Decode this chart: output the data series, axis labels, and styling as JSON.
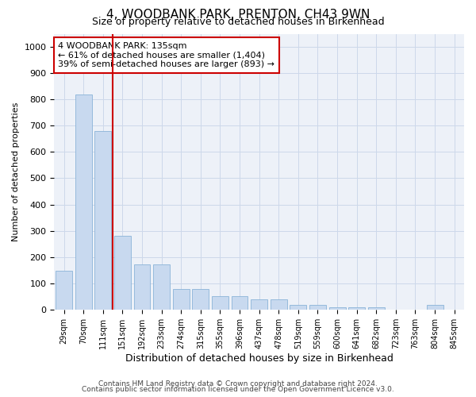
{
  "title": "4, WOODBANK PARK, PRENTON, CH43 9WN",
  "subtitle": "Size of property relative to detached houses in Birkenhead",
  "xlabel": "Distribution of detached houses by size in Birkenhead",
  "ylabel": "Number of detached properties",
  "categories": [
    "29sqm",
    "70sqm",
    "111sqm",
    "151sqm",
    "192sqm",
    "233sqm",
    "274sqm",
    "315sqm",
    "355sqm",
    "396sqm",
    "437sqm",
    "478sqm",
    "519sqm",
    "559sqm",
    "600sqm",
    "641sqm",
    "682sqm",
    "723sqm",
    "763sqm",
    "804sqm",
    "845sqm"
  ],
  "values": [
    148,
    820,
    680,
    280,
    172,
    172,
    78,
    78,
    50,
    50,
    40,
    40,
    18,
    18,
    10,
    10,
    8,
    0,
    0,
    18,
    0
  ],
  "bar_color": "#c8d9ef",
  "bar_edge_color": "#8ab4d8",
  "vline_x_index": 2,
  "vline_color": "#cc0000",
  "annotation_text": "4 WOODBANK PARK: 135sqm\n← 61% of detached houses are smaller (1,404)\n39% of semi-detached houses are larger (893) →",
  "annotation_box_color": "#ffffff",
  "annotation_box_edge": "#cc0000",
  "ylim": [
    0,
    1050
  ],
  "yticks": [
    0,
    100,
    200,
    300,
    400,
    500,
    600,
    700,
    800,
    900,
    1000
  ],
  "footer1": "Contains HM Land Registry data © Crown copyright and database right 2024.",
  "footer2": "Contains public sector information licensed under the Open Government Licence v3.0.",
  "grid_color": "#cdd8ea",
  "background_color": "#edf1f8",
  "title_fontsize": 11,
  "subtitle_fontsize": 9
}
